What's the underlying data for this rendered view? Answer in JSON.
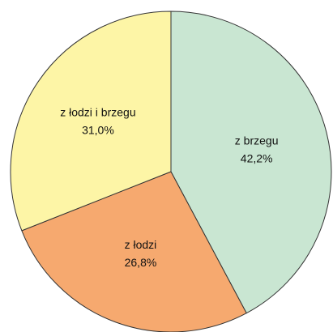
{
  "chart_data": {
    "type": "pie",
    "categories": [
      "z brzegu",
      "z łodzi",
      "z łodzi i brzegu"
    ],
    "values": [
      42.2,
      26.8,
      31.0
    ],
    "value_labels": [
      "42,2%",
      "26,8%",
      "31,0%"
    ],
    "colors": [
      "#c9e6d2",
      "#f6a96f",
      "#fdf5a6"
    ]
  }
}
